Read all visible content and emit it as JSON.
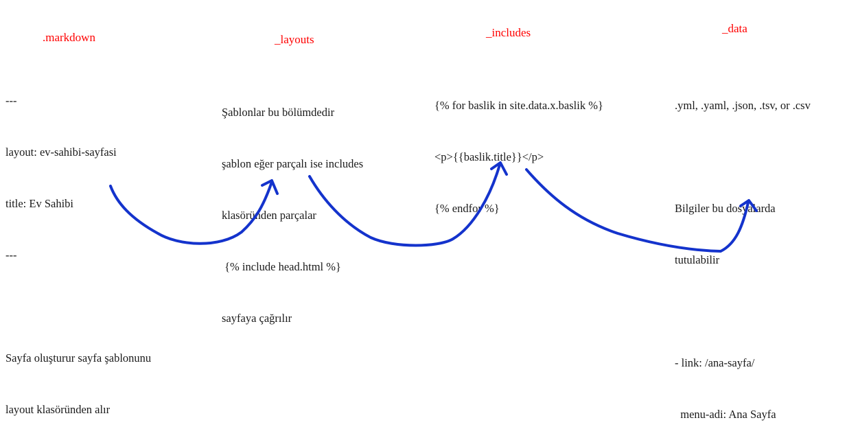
{
  "columns": [
    {
      "heading": ".markdown",
      "lines": [
        "---",
        "layout: ev-sahibi-sayfasi",
        "title: Ev Sahibi",
        "---",
        "",
        "Sayfa oluşturur sayfa şablonunu",
        "layout klasöründen alır"
      ]
    },
    {
      "heading": "_layouts",
      "lines": [
        "Şablonlar bu bölümdedir",
        "şablon eğer parçalı ise includes",
        "klasöründen parçalar",
        " {% include head.html %}",
        "sayfaya çağrılır"
      ]
    },
    {
      "heading": "_includes",
      "lines": [
        "{% for baslik in site.data.x.baslik %}",
        "<p>{{baslik.title}}</p>",
        "{% endfor %}"
      ]
    },
    {
      "heading": "_data",
      "lines": [
        ".yml, .yaml, .json, .tsv, or .csv",
        "",
        "Bilgiler bu dosyalarda",
        "tutulabilir",
        "",
        "- link: /ana-sayfa/",
        "  menu-adi: Ana Sayfa"
      ]
    }
  ],
  "arrow_color": "#1433cc"
}
